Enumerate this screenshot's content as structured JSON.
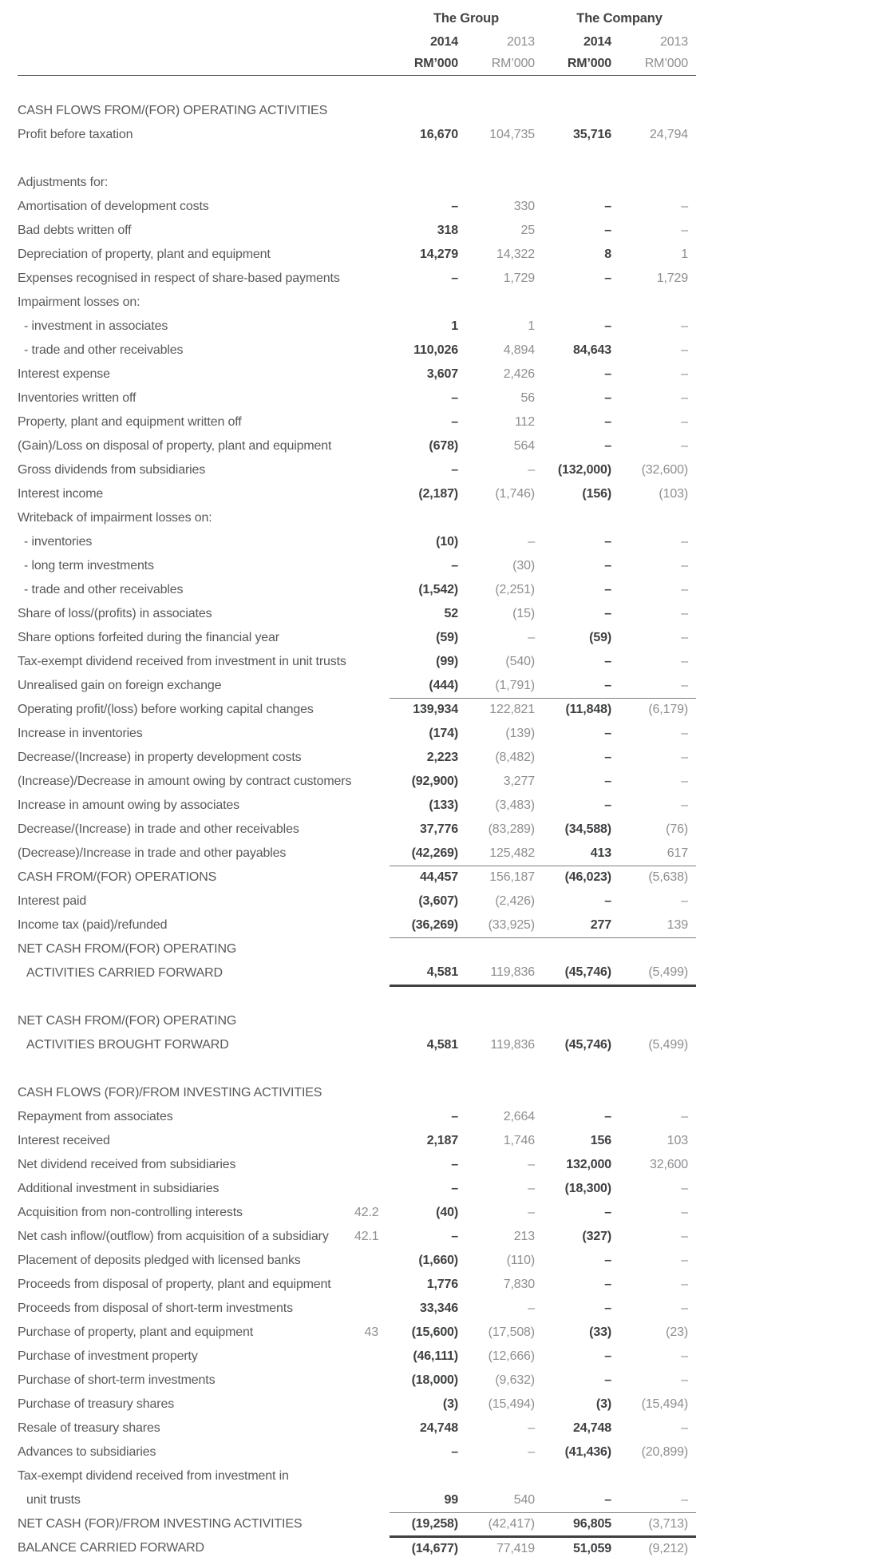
{
  "table": {
    "header": {
      "group_label": "The Group",
      "company_label": "The Company",
      "years": [
        "2014",
        "2013",
        "2014",
        "2013"
      ],
      "unit": "RM’000"
    },
    "rows": [
      {
        "spacer": true
      },
      {
        "section": true,
        "label": "CASH FLOWS FROM/(FOR) OPERATING ACTIVITIES"
      },
      {
        "label": "Profit before taxation",
        "values": [
          "16,670",
          "104,735",
          "35,716",
          "24,794"
        ]
      },
      {
        "spacer": true
      },
      {
        "label": "Adjustments for:"
      },
      {
        "label": "Amortisation of development costs",
        "values": [
          "–",
          "330",
          "–",
          "–"
        ]
      },
      {
        "label": "Bad debts written off",
        "values": [
          "318",
          "25",
          "–",
          "–"
        ]
      },
      {
        "label": "Depreciation of property, plant and equipment",
        "values": [
          "14,279",
          "14,322",
          "8",
          "1"
        ]
      },
      {
        "label": "Expenses recognised in respect of share-based payments",
        "values": [
          "–",
          "1,729",
          "–",
          "1,729"
        ]
      },
      {
        "label": "Impairment losses on:"
      },
      {
        "label": "- investment in associates",
        "indent": 1,
        "values": [
          "1",
          "1",
          "–",
          "–"
        ]
      },
      {
        "label": "- trade and other receivables",
        "indent": 1,
        "values": [
          "110,026",
          "4,894",
          "84,643",
          "–"
        ]
      },
      {
        "label": "Interest expense",
        "values": [
          "3,607",
          "2,426",
          "–",
          "–"
        ]
      },
      {
        "label": "Inventories written off",
        "values": [
          "–",
          "56",
          "–",
          "–"
        ]
      },
      {
        "label": "Property, plant and equipment written off",
        "values": [
          "–",
          "112",
          "–",
          "–"
        ]
      },
      {
        "label": "(Gain)/Loss on disposal of property, plant and equipment",
        "values": [
          "(678)",
          "564",
          "–",
          "–"
        ]
      },
      {
        "label": "Gross dividends from subsidiaries",
        "values": [
          "–",
          "–",
          "(132,000)",
          "(32,600)"
        ]
      },
      {
        "label": "Interest income",
        "values": [
          "(2,187)",
          "(1,746)",
          "(156)",
          "(103)"
        ]
      },
      {
        "label": "Writeback of impairment losses on:"
      },
      {
        "label": "- inventories",
        "indent": 1,
        "values": [
          "(10)",
          "–",
          "–",
          "–"
        ]
      },
      {
        "label": "- long term investments",
        "indent": 1,
        "values": [
          "–",
          "(30)",
          "–",
          "–"
        ]
      },
      {
        "label": "- trade and other receivables",
        "indent": 1,
        "values": [
          "(1,542)",
          "(2,251)",
          "–",
          "–"
        ]
      },
      {
        "label": "Share of loss/(profits) in associates",
        "values": [
          "52",
          "(15)",
          "–",
          "–"
        ]
      },
      {
        "label": "Share options forfeited during the financial year",
        "values": [
          "(59)",
          "–",
          "(59)",
          "–"
        ]
      },
      {
        "label": "Tax-exempt dividend received from investment in unit trusts",
        "values": [
          "(99)",
          "(540)",
          "–",
          "–"
        ]
      },
      {
        "label": "Unrealised gain on foreign exchange",
        "rule": "thin",
        "values": [
          "(444)",
          "(1,791)",
          "–",
          "–"
        ]
      },
      {
        "label": "Operating profit/(loss) before working capital changes",
        "values": [
          "139,934",
          "122,821",
          "(11,848)",
          "(6,179)"
        ]
      },
      {
        "label": "Increase in inventories",
        "values": [
          "(174)",
          "(139)",
          "–",
          "–"
        ]
      },
      {
        "label": "Decrease/(Increase) in property development costs",
        "values": [
          "2,223",
          "(8,482)",
          "–",
          "–"
        ]
      },
      {
        "label": "(Increase)/Decrease in amount owing by contract customers",
        "values": [
          "(92,900)",
          "3,277",
          "–",
          "–"
        ]
      },
      {
        "label": "Increase in amount owing by associates",
        "values": [
          "(133)",
          "(3,483)",
          "–",
          "–"
        ]
      },
      {
        "label": "Decrease/(Increase) in trade and other receivables",
        "values": [
          "37,776",
          "(83,289)",
          "(34,588)",
          "(76)"
        ]
      },
      {
        "label": "(Decrease)/Increase in trade and other payables",
        "rule": "thin",
        "values": [
          "(42,269)",
          "125,482",
          "413",
          "617"
        ]
      },
      {
        "label": "CASH FROM/(FOR) OPERATIONS",
        "values": [
          "44,457",
          "156,187",
          "(46,023)",
          "(5,638)"
        ]
      },
      {
        "label": "Interest paid",
        "values": [
          "(3,607)",
          "(2,426)",
          "–",
          "–"
        ]
      },
      {
        "label": "Income tax (paid)/refunded",
        "rule": "thin",
        "values": [
          "(36,269)",
          "(33,925)",
          "277",
          "139"
        ]
      },
      {
        "label": "NET CASH FROM/(FOR) OPERATING"
      },
      {
        "label": "ACTIVITIES CARRIED FORWARD",
        "indent": 2,
        "rule": "thick",
        "values": [
          "4,581",
          "119,836",
          "(45,746)",
          "(5,499)"
        ]
      },
      {
        "spacer": true
      },
      {
        "label": "NET CASH FROM/(FOR) OPERATING"
      },
      {
        "label": "ACTIVITIES BROUGHT FORWARD",
        "indent": 2,
        "values": [
          "4,581",
          "119,836",
          "(45,746)",
          "(5,499)"
        ]
      },
      {
        "spacer": true
      },
      {
        "section": true,
        "label": "CASH FLOWS (FOR)/FROM INVESTING ACTIVITIES"
      },
      {
        "label": "Repayment from associates",
        "values": [
          "–",
          "2,664",
          "–",
          "–"
        ]
      },
      {
        "label": "Interest received",
        "values": [
          "2,187",
          "1,746",
          "156",
          "103"
        ]
      },
      {
        "label": "Net dividend received from subsidiaries",
        "values": [
          "–",
          "–",
          "132,000",
          "32,600"
        ]
      },
      {
        "label": "Additional investment in subsidiaries",
        "values": [
          "–",
          "–",
          "(18,300)",
          "–"
        ]
      },
      {
        "label": "Acquisition from non-controlling interests",
        "note": "42.2",
        "values": [
          "(40)",
          "–",
          "–",
          "–"
        ]
      },
      {
        "label": "Net cash inflow/(outflow) from acquisition of a subsidiary",
        "note": "42.1",
        "values": [
          "–",
          "213",
          "(327)",
          "–"
        ]
      },
      {
        "label": "Placement of deposits pledged with licensed banks",
        "values": [
          "(1,660)",
          "(110)",
          "–",
          "–"
        ]
      },
      {
        "label": "Proceeds from disposal of property, plant and equipment",
        "values": [
          "1,776",
          "7,830",
          "–",
          "–"
        ]
      },
      {
        "label": "Proceeds from disposal of short-term investments",
        "values": [
          "33,346",
          "–",
          "–",
          "–"
        ]
      },
      {
        "label": "Purchase of property, plant and equipment",
        "note": "43",
        "values": [
          "(15,600)",
          "(17,508)",
          "(33)",
          "(23)"
        ]
      },
      {
        "label": "Purchase of investment property",
        "values": [
          "(46,111)",
          "(12,666)",
          "–",
          "–"
        ]
      },
      {
        "label": "Purchase of short-term investments",
        "values": [
          "(18,000)",
          "(9,632)",
          "–",
          "–"
        ]
      },
      {
        "label": "Purchase of treasury shares",
        "values": [
          "(3)",
          "(15,494)",
          "(3)",
          "(15,494)"
        ]
      },
      {
        "label": "Resale of treasury shares",
        "values": [
          "24,748",
          "–",
          "24,748",
          "–"
        ]
      },
      {
        "label": "Advances to subsidiaries",
        "values": [
          "–",
          "–",
          "(41,436)",
          "(20,899)"
        ]
      },
      {
        "label": "Tax-exempt dividend received from investment in"
      },
      {
        "label": "unit trusts",
        "indent": 2,
        "rule": "thin",
        "values": [
          "99",
          "540",
          "–",
          "–"
        ]
      },
      {
        "label": "NET CASH (FOR)/FROM INVESTING ACTIVITIES",
        "rule": "thick",
        "values": [
          "(19,258)",
          "(42,417)",
          "96,805",
          "(3,713)"
        ]
      },
      {
        "label": "BALANCE CARRIED FORWARD",
        "values": [
          "(14,677)",
          "77,419",
          "51,059",
          "(9,212)"
        ]
      }
    ]
  }
}
